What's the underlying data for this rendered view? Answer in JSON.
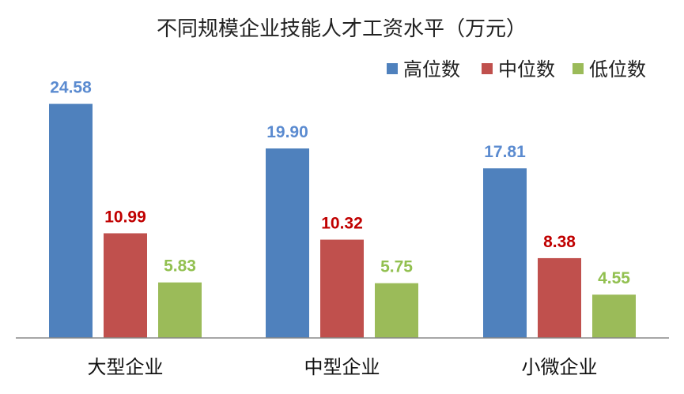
{
  "chart_data": {
    "type": "bar",
    "title": "不同规模企业技能人才工资水平（万元）",
    "xlabel": "",
    "ylabel": "",
    "categories": [
      "大型企业",
      "中型企业",
      "小微企业"
    ],
    "series": [
      {
        "name": "高位数",
        "color": "#4F81BD",
        "label_color": "#5B8BD0",
        "values": [
          24.58,
          19.9,
          17.81
        ],
        "labels": [
          "24.58",
          "19.90",
          "17.81"
        ]
      },
      {
        "name": "中位数",
        "color": "#C0504D",
        "label_color": "#C00000",
        "values": [
          10.99,
          10.32,
          8.38
        ],
        "labels": [
          "10.99",
          "10.32",
          "8.38"
        ]
      },
      {
        "name": "低位数",
        "color": "#9BBB59",
        "label_color": "#92C050",
        "values": [
          5.83,
          5.75,
          4.55
        ],
        "labels": [
          "5.83",
          "5.75",
          "4.55"
        ]
      }
    ],
    "ylim": [
      0,
      25
    ],
    "grid": false,
    "legend_position": "top-right"
  }
}
